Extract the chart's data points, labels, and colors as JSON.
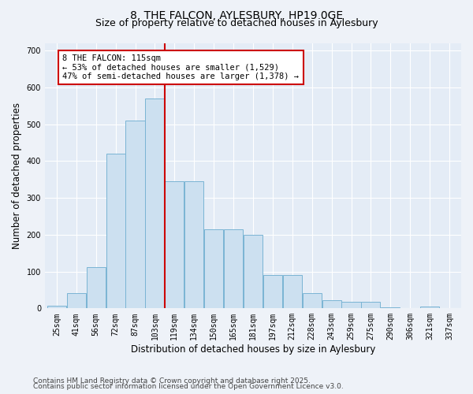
{
  "title": "8, THE FALCON, AYLESBURY, HP19 0GE",
  "subtitle": "Size of property relative to detached houses in Aylesbury",
  "xlabel": "Distribution of detached houses by size in Aylesbury",
  "ylabel": "Number of detached properties",
  "categories": [
    "25sqm",
    "41sqm",
    "56sqm",
    "72sqm",
    "87sqm",
    "103sqm",
    "119sqm",
    "134sqm",
    "150sqm",
    "165sqm",
    "181sqm",
    "197sqm",
    "212sqm",
    "228sqm",
    "243sqm",
    "259sqm",
    "275sqm",
    "290sqm",
    "306sqm",
    "321sqm",
    "337sqm"
  ],
  "values": [
    8,
    42,
    113,
    420,
    510,
    570,
    345,
    345,
    215,
    215,
    200,
    90,
    90,
    42,
    22,
    18,
    18,
    2,
    0,
    6,
    0
  ],
  "bar_color": "#cce0f0",
  "bar_edge_color": "#7ab4d4",
  "vline_color": "#cc0000",
  "vline_index": 6,
  "annotation_text": "8 THE FALCON: 115sqm\n← 53% of detached houses are smaller (1,529)\n47% of semi-detached houses are larger (1,378) →",
  "annotation_box_color": "white",
  "annotation_box_edge_color": "#cc0000",
  "ylim": [
    0,
    720
  ],
  "yticks": [
    0,
    100,
    200,
    300,
    400,
    500,
    600,
    700
  ],
  "footer1": "Contains HM Land Registry data © Crown copyright and database right 2025.",
  "footer2": "Contains public sector information licensed under the Open Government Licence v3.0.",
  "bg_color": "#eef2f8",
  "plot_bg_color": "#e4ecf6",
  "grid_color": "#ffffff",
  "title_fontsize": 10,
  "subtitle_fontsize": 9,
  "axis_label_fontsize": 8.5,
  "tick_fontsize": 7,
  "footer_fontsize": 6.5,
  "annotation_fontsize": 7.5
}
